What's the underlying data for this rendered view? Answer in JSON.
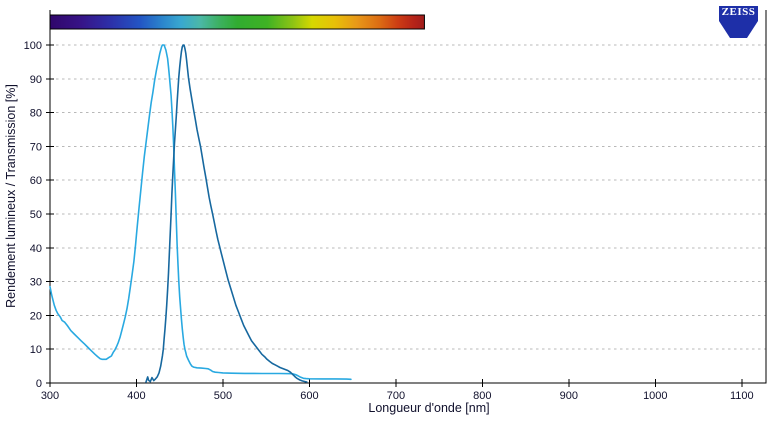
{
  "brand": {
    "logo_text": "ZEISS",
    "logo_color": "#1E2FA8"
  },
  "chart_data": {
    "type": "line",
    "title": "",
    "xlabel": "Longueur d'onde [nm]",
    "ylabel": "Rendement lumineux / Transmission [%]",
    "xlim": [
      300,
      1128
    ],
    "ylim": [
      0,
      100
    ],
    "x_ticks": [
      300,
      400,
      500,
      600,
      700,
      800,
      900,
      1000,
      1100
    ],
    "y_ticks": [
      0,
      10,
      20,
      30,
      40,
      50,
      60,
      70,
      80,
      90,
      100
    ],
    "grid": "horizontal dotted",
    "legend": "none",
    "axis_color": "#000000",
    "grid_color": "#b8b8b8",
    "tick_label_color": "#10102c",
    "spectrum_bar": {
      "from_nm": 300,
      "to_nm": 733,
      "stops": [
        [
          0,
          "#30076B"
        ],
        [
          0.08,
          "#371386"
        ],
        [
          0.16,
          "#2D2FA8"
        ],
        [
          0.24,
          "#2355C4"
        ],
        [
          0.3,
          "#2B85CC"
        ],
        [
          0.35,
          "#39A8D0"
        ],
        [
          0.4,
          "#4BB8A8"
        ],
        [
          0.45,
          "#3DB163"
        ],
        [
          0.5,
          "#31AC31"
        ],
        [
          0.58,
          "#3FB224"
        ],
        [
          0.65,
          "#8FC414"
        ],
        [
          0.7,
          "#D6D800"
        ],
        [
          0.76,
          "#E8C008"
        ],
        [
          0.82,
          "#E89818"
        ],
        [
          0.88,
          "#DC6C14"
        ],
        [
          0.93,
          "#CC3C14"
        ],
        [
          0.97,
          "#B62418"
        ],
        [
          1,
          "#A01C1C"
        ]
      ]
    },
    "series": [
      {
        "name": "transmission-curve-light-blue",
        "color": "#29A9E1",
        "points": [
          [
            300,
            28.5
          ],
          [
            302,
            26
          ],
          [
            305,
            23
          ],
          [
            307,
            21.5
          ],
          [
            309,
            20.5
          ],
          [
            312,
            19.5
          ],
          [
            314,
            18.5
          ],
          [
            317,
            18
          ],
          [
            320,
            17
          ],
          [
            324,
            15.5
          ],
          [
            328,
            14.5
          ],
          [
            332,
            13.5
          ],
          [
            336,
            12.5
          ],
          [
            340,
            11.5
          ],
          [
            344,
            10.5
          ],
          [
            348,
            9.5
          ],
          [
            352,
            8.5
          ],
          [
            355,
            7.8
          ],
          [
            358,
            7.2
          ],
          [
            360,
            7
          ],
          [
            365,
            7
          ],
          [
            368,
            7.5
          ],
          [
            371,
            8
          ],
          [
            373,
            9
          ],
          [
            375,
            9.8
          ],
          [
            377,
            10.8
          ],
          [
            379,
            12
          ],
          [
            381,
            13.5
          ],
          [
            383,
            15.5
          ],
          [
            385,
            17.5
          ],
          [
            387,
            19.5
          ],
          [
            389,
            22
          ],
          [
            391,
            25
          ],
          [
            393,
            28.5
          ],
          [
            395,
            32
          ],
          [
            397,
            36
          ],
          [
            399,
            41
          ],
          [
            400,
            44
          ],
          [
            401,
            46.5
          ],
          [
            403,
            52
          ],
          [
            405,
            57
          ],
          [
            407,
            62
          ],
          [
            409,
            67
          ],
          [
            411,
            71
          ],
          [
            413,
            75
          ],
          [
            415,
            79
          ],
          [
            417,
            83
          ],
          [
            419,
            86
          ],
          [
            421,
            89.5
          ],
          [
            423,
            92.5
          ],
          [
            425,
            95
          ],
          [
            427,
            97.5
          ],
          [
            429,
            99.5
          ],
          [
            430,
            100
          ],
          [
            432,
            100
          ],
          [
            434,
            98.5
          ],
          [
            436,
            96
          ],
          [
            437,
            93.5
          ],
          [
            438,
            91
          ],
          [
            439,
            88
          ],
          [
            440,
            85
          ],
          [
            441,
            81
          ],
          [
            442,
            76
          ],
          [
            443,
            70
          ],
          [
            444,
            63
          ],
          [
            445,
            56
          ],
          [
            446,
            48
          ],
          [
            447,
            41
          ],
          [
            448,
            35
          ],
          [
            449,
            30
          ],
          [
            450,
            25.5
          ],
          [
            451,
            22
          ],
          [
            452,
            19
          ],
          [
            453,
            16
          ],
          [
            454,
            13.5
          ],
          [
            455,
            11.5
          ],
          [
            456,
            10
          ],
          [
            457,
            9
          ],
          [
            458,
            8
          ],
          [
            460,
            6.8
          ],
          [
            462,
            5.8
          ],
          [
            464,
            5
          ],
          [
            466,
            4.7
          ],
          [
            470,
            4.5
          ],
          [
            475,
            4.4
          ],
          [
            480,
            4.3
          ],
          [
            483,
            4.2
          ],
          [
            486,
            3.8
          ],
          [
            488,
            3.4
          ],
          [
            491,
            3.2
          ],
          [
            495,
            3.1
          ],
          [
            500,
            3
          ],
          [
            510,
            2.9
          ],
          [
            525,
            2.85
          ],
          [
            545,
            2.8
          ],
          [
            565,
            2.8
          ],
          [
            580,
            2.75
          ],
          [
            584,
            2.5
          ],
          [
            587,
            2.1
          ],
          [
            590,
            1.7
          ],
          [
            593,
            1.4
          ],
          [
            596,
            1.3
          ],
          [
            600,
            1.25
          ],
          [
            615,
            1.2
          ],
          [
            630,
            1.2
          ],
          [
            643,
            1.15
          ],
          [
            648,
            1.1
          ]
        ]
      },
      {
        "name": "emission-curve-dark-blue",
        "color": "#17689F",
        "points": [
          [
            411,
            0.3
          ],
          [
            413,
            1.8
          ],
          [
            414,
            0.8
          ],
          [
            416,
            0.4
          ],
          [
            418,
            1.6
          ],
          [
            420,
            0.7
          ],
          [
            422,
            1.2
          ],
          [
            424,
            1.8
          ],
          [
            426,
            3
          ],
          [
            428,
            5
          ],
          [
            430,
            8
          ],
          [
            431,
            10
          ],
          [
            432,
            13
          ],
          [
            433,
            16
          ],
          [
            434,
            19.5
          ],
          [
            435,
            23
          ],
          [
            436,
            27.5
          ],
          [
            437,
            32.5
          ],
          [
            438,
            38
          ],
          [
            439,
            44
          ],
          [
            440,
            50
          ],
          [
            441,
            56
          ],
          [
            442,
            61.5
          ],
          [
            443,
            66.5
          ],
          [
            444,
            71
          ],
          [
            445,
            75
          ],
          [
            446,
            79
          ],
          [
            447,
            83
          ],
          [
            448,
            87
          ],
          [
            449,
            90.5
          ],
          [
            450,
            93.5
          ],
          [
            451,
            96
          ],
          [
            452,
            98
          ],
          [
            453,
            99.5
          ],
          [
            454,
            100
          ],
          [
            455,
            100
          ],
          [
            456,
            99
          ],
          [
            457,
            97.5
          ],
          [
            458,
            95.5
          ],
          [
            459,
            93
          ],
          [
            460,
            90.5
          ],
          [
            462,
            87
          ],
          [
            464,
            84
          ],
          [
            466,
            81
          ],
          [
            468,
            78
          ],
          [
            470,
            75
          ],
          [
            472,
            72.5
          ],
          [
            474,
            70
          ],
          [
            476,
            67
          ],
          [
            478,
            64
          ],
          [
            480,
            61
          ],
          [
            482,
            58
          ],
          [
            484,
            55
          ],
          [
            486,
            52.5
          ],
          [
            488,
            50
          ],
          [
            490,
            47.5
          ],
          [
            492,
            45
          ],
          [
            494,
            42.5
          ],
          [
            496,
            40.5
          ],
          [
            498,
            38.5
          ],
          [
            500,
            36.5
          ],
          [
            503,
            33.5
          ],
          [
            506,
            30.5
          ],
          [
            509,
            28
          ],
          [
            512,
            25.5
          ],
          [
            515,
            23
          ],
          [
            518,
            21
          ],
          [
            521,
            19
          ],
          [
            524,
            17
          ],
          [
            527,
            15.5
          ],
          [
            530,
            14
          ],
          [
            533,
            12.5
          ],
          [
            536,
            11.5
          ],
          [
            539,
            10.5
          ],
          [
            542,
            9.5
          ],
          [
            545,
            8.5
          ],
          [
            548,
            7.8
          ],
          [
            551,
            7
          ],
          [
            554,
            6.4
          ],
          [
            557,
            5.8
          ],
          [
            560,
            5.4
          ],
          [
            563,
            5
          ],
          [
            566,
            4.6
          ],
          [
            569,
            4.3
          ],
          [
            572,
            4
          ],
          [
            575,
            3.7
          ],
          [
            578,
            3.2
          ],
          [
            580,
            2.7
          ],
          [
            582,
            2.2
          ],
          [
            584,
            1.7
          ],
          [
            586,
            1.3
          ],
          [
            589,
            0.9
          ],
          [
            592,
            0.6
          ],
          [
            595,
            0.4
          ],
          [
            597,
            0.3
          ]
        ]
      }
    ]
  }
}
